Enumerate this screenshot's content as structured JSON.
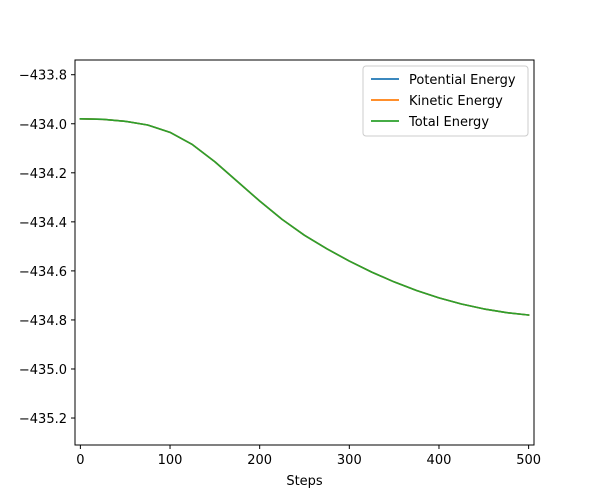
{
  "chart_data": {
    "type": "line",
    "title": "",
    "xlabel": "Steps",
    "ylabel": "",
    "xlim": [
      -6,
      506
    ],
    "ylim": [
      -435.31,
      -433.74
    ],
    "x_ticks": [
      0,
      100,
      200,
      300,
      400,
      500
    ],
    "x_tick_labels": [
      "0",
      "100",
      "200",
      "300",
      "400",
      "500"
    ],
    "y_ticks": [
      -433.8,
      -434.0,
      -434.2,
      -434.4,
      -434.6,
      -434.8,
      -435.0,
      -435.2
    ],
    "y_tick_labels": [
      "−433.8",
      "−434.0",
      "−434.2",
      "−434.4",
      "−434.6",
      "−434.8",
      "−435.0",
      "−435.2"
    ],
    "grid": false,
    "legend": "top-right",
    "series": [
      {
        "name": "Potential Energy",
        "color": "#1f77b4",
        "x": [
          0,
          25,
          50,
          75,
          100,
          125,
          150,
          175,
          200,
          225,
          250,
          275,
          300,
          325,
          350,
          375,
          400,
          425,
          450,
          475,
          500
        ],
        "y": [
          -433.98,
          -433.982,
          -433.99,
          -434.005,
          -434.035,
          -434.085,
          -434.155,
          -434.235,
          -434.315,
          -434.39,
          -434.455,
          -434.51,
          -434.56,
          -434.605,
          -434.645,
          -434.68,
          -434.71,
          -434.735,
          -434.755,
          -434.77,
          -434.78
        ]
      },
      {
        "name": "Kinetic Energy",
        "color": "#ff7f0e",
        "x": [
          0,
          25,
          50,
          75,
          100,
          125,
          150,
          175,
          200,
          225,
          250,
          275,
          300,
          325,
          350,
          375,
          400,
          425,
          450,
          475,
          500
        ],
        "y": [
          -433.98,
          -433.982,
          -433.99,
          -434.005,
          -434.035,
          -434.085,
          -434.155,
          -434.235,
          -434.315,
          -434.39,
          -434.455,
          -434.51,
          -434.56,
          -434.605,
          -434.645,
          -434.68,
          -434.71,
          -434.735,
          -434.755,
          -434.77,
          -434.78
        ]
      },
      {
        "name": "Total Energy",
        "color": "#2ca02c",
        "x": [
          0,
          25,
          50,
          75,
          100,
          125,
          150,
          175,
          200,
          225,
          250,
          275,
          300,
          325,
          350,
          375,
          400,
          425,
          450,
          475,
          500
        ],
        "y": [
          -433.98,
          -433.982,
          -433.99,
          -434.005,
          -434.035,
          -434.085,
          -434.155,
          -434.235,
          -434.315,
          -434.39,
          -434.455,
          -434.51,
          -434.56,
          -434.605,
          -434.645,
          -434.68,
          -434.71,
          -434.735,
          -434.755,
          -434.77,
          -434.78
        ]
      }
    ]
  }
}
